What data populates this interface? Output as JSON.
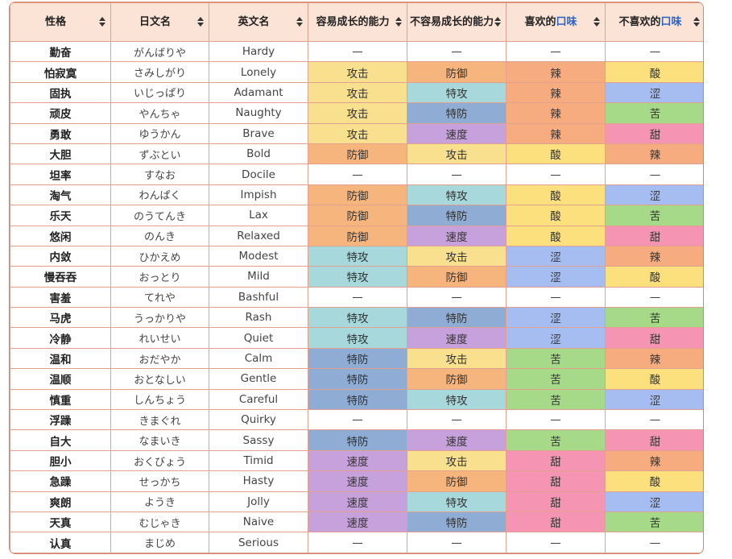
{
  "headers": [
    {
      "text": "性格",
      "hl": ""
    },
    {
      "text": "日文名",
      "hl": ""
    },
    {
      "text": "英文名",
      "hl": ""
    },
    {
      "text": "容易成长的能力",
      "hl": ""
    },
    {
      "text": "不容易成长的能力",
      "hl": ""
    },
    {
      "text": "喜欢的",
      "hl": "口味"
    },
    {
      "text": "不喜欢的",
      "hl": "口味"
    }
  ],
  "colors": {
    "攻击": "c-atk",
    "防御": "c-def",
    "特攻": "c-spa",
    "特防": "c-spd",
    "速度": "c-spe",
    "辣": "f-spicy",
    "酸": "f-sour",
    "涩": "f-dry",
    "苦": "f-bitter",
    "甜": "f-sweet"
  },
  "rows": [
    [
      "勤奋",
      "がんばりや",
      "Hardy",
      "—",
      "—",
      "—",
      "—"
    ],
    [
      "怕寂寞",
      "さみしがり",
      "Lonely",
      "攻击",
      "防御",
      "辣",
      "酸"
    ],
    [
      "固执",
      "いじっぱり",
      "Adamant",
      "攻击",
      "特攻",
      "辣",
      "涩"
    ],
    [
      "顽皮",
      "やんちゃ",
      "Naughty",
      "攻击",
      "特防",
      "辣",
      "苦"
    ],
    [
      "勇敢",
      "ゆうかん",
      "Brave",
      "攻击",
      "速度",
      "辣",
      "甜"
    ],
    [
      "大胆",
      "ずぶとい",
      "Bold",
      "防御",
      "攻击",
      "酸",
      "辣"
    ],
    [
      "坦率",
      "すなお",
      "Docile",
      "—",
      "—",
      "—",
      "—"
    ],
    [
      "淘气",
      "わんぱく",
      "Impish",
      "防御",
      "特攻",
      "酸",
      "涩"
    ],
    [
      "乐天",
      "のうてんき",
      "Lax",
      "防御",
      "特防",
      "酸",
      "苦"
    ],
    [
      "悠闲",
      "のんき",
      "Relaxed",
      "防御",
      "速度",
      "酸",
      "甜"
    ],
    [
      "内敛",
      "ひかえめ",
      "Modest",
      "特攻",
      "攻击",
      "涩",
      "辣"
    ],
    [
      "慢吞吞",
      "おっとり",
      "Mild",
      "特攻",
      "防御",
      "涩",
      "酸"
    ],
    [
      "害羞",
      "てれや",
      "Bashful",
      "—",
      "—",
      "—",
      "—"
    ],
    [
      "马虎",
      "うっかりや",
      "Rash",
      "特攻",
      "特防",
      "涩",
      "苦"
    ],
    [
      "冷静",
      "れいせい",
      "Quiet",
      "特攻",
      "速度",
      "涩",
      "甜"
    ],
    [
      "温和",
      "おだやか",
      "Calm",
      "特防",
      "攻击",
      "苦",
      "辣"
    ],
    [
      "温顺",
      "おとなしい",
      "Gentle",
      "特防",
      "防御",
      "苦",
      "酸"
    ],
    [
      "慎重",
      "しんちょう",
      "Careful",
      "特防",
      "特攻",
      "苦",
      "涩"
    ],
    [
      "浮躁",
      "きまぐれ",
      "Quirky",
      "—",
      "—",
      "—",
      "—"
    ],
    [
      "自大",
      "なまいき",
      "Sassy",
      "特防",
      "速度",
      "苦",
      "甜"
    ],
    [
      "胆小",
      "おくびょう",
      "Timid",
      "速度",
      "攻击",
      "甜",
      "辣"
    ],
    [
      "急躁",
      "せっかち",
      "Hasty",
      "速度",
      "防御",
      "甜",
      "酸"
    ],
    [
      "爽朗",
      "ようき",
      "Jolly",
      "速度",
      "特攻",
      "甜",
      "涩"
    ],
    [
      "天真",
      "むじゃき",
      "Naive",
      "速度",
      "特防",
      "甜",
      "苦"
    ],
    [
      "认真",
      "まじめ",
      "Serious",
      "—",
      "—",
      "—",
      "—"
    ]
  ]
}
